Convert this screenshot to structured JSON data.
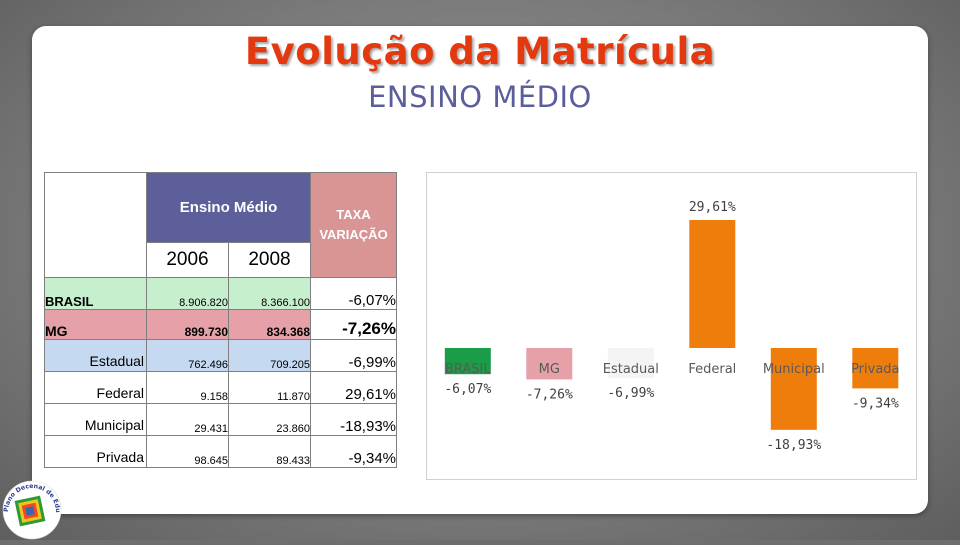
{
  "slide": {
    "title": "Evolução da Matrícula",
    "subtitle": "ENSINO MÉDIO"
  },
  "table": {
    "header_group": "Ensino Médio",
    "header_rate_line1": "TAXA",
    "header_rate_line2": "VARIAÇÃO",
    "years": [
      "2006",
      "2008"
    ],
    "rows": [
      {
        "label": "BRASIL",
        "v2006": "8.906.820",
        "v2008": "8.366.100",
        "rate": "-6,07%"
      },
      {
        "label": "MG",
        "v2006": "899.730",
        "v2008": "834.368",
        "rate": "-7,26%"
      },
      {
        "label": "Estadual",
        "v2006": "762.496",
        "v2008": "709.205",
        "rate": "-6,99%"
      },
      {
        "label": "Federal",
        "v2006": "9.158",
        "v2008": "11.870",
        "rate": "29,61%"
      },
      {
        "label": "Municipal",
        "v2006": "29.431",
        "v2008": "23.860",
        "rate": "-18,93%"
      },
      {
        "label": "Privada",
        "v2006": "98.645",
        "v2008": "89.433",
        "rate": "-9,34%"
      }
    ]
  },
  "chart_data": {
    "type": "bar",
    "categories": [
      "BRASIL",
      "MG",
      "Estadual",
      "Federal",
      "Municipal",
      "Privada"
    ],
    "values": [
      -6.07,
      -7.26,
      -6.99,
      29.61,
      -18.93,
      -9.34
    ],
    "data_labels": [
      "-6,07%",
      "-7,26%",
      "-6,99%",
      "29,61%",
      "-18,93%",
      "-9,34%"
    ],
    "bar_colors": [
      "#1a9c48",
      "#e6a0a8",
      "#f4f4f4",
      "#ef7d0c",
      "#ef7d0c",
      "#ef7d0c"
    ],
    "title": "",
    "xlabel": "",
    "ylabel": "",
    "grid": false,
    "legend": "none"
  },
  "logo": {
    "text": "Plano Decenal de Educação de Minas Gerais",
    "colors": [
      "#2c9a3b",
      "#f0c419",
      "#e94b2b",
      "#3a66b0"
    ]
  }
}
